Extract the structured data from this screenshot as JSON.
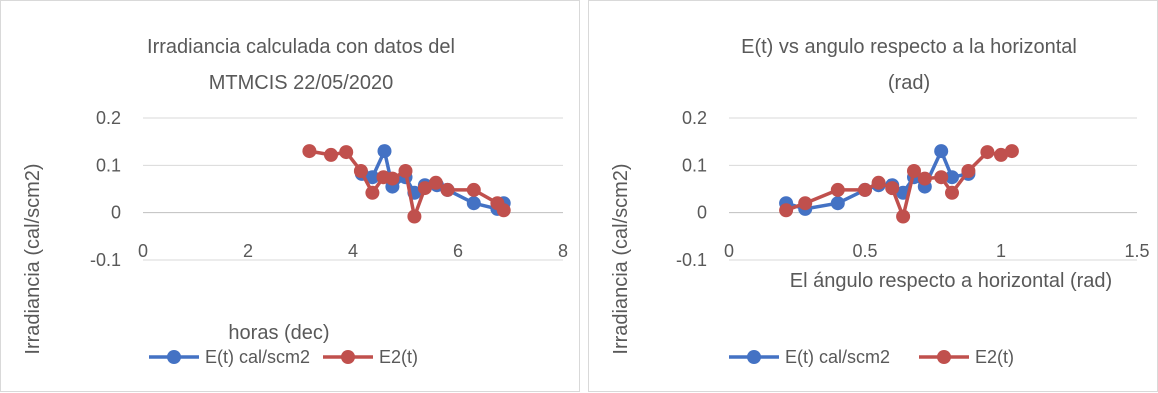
{
  "chart_data": [
    {
      "type": "scatter",
      "title": [
        "Irradiancia calculada con datos del",
        "MTMCIS 22/05/2020"
      ],
      "xlabel": "horas (dec)",
      "ylabel": "Irradiancia (cal/scm2)",
      "xlim": [
        0,
        8
      ],
      "ylim": [
        -0.1,
        0.2
      ],
      "xticks": [
        "0",
        "2",
        "4",
        "6",
        "8"
      ],
      "yticks": [
        "0.2",
        "0.1",
        "0",
        "-0.1"
      ],
      "grid": "horizontal",
      "legend": "bottom",
      "series": [
        {
          "name": "E(t) cal/scm2",
          "color": "#4472c4",
          "points": [
            [
              4.17,
              0.082
            ],
            [
              4.37,
              0.075
            ],
            [
              4.6,
              0.13
            ],
            [
              4.75,
              0.055
            ],
            [
              5.0,
              0.075
            ],
            [
              5.17,
              0.042
            ],
            [
              5.37,
              0.058
            ],
            [
              5.6,
              0.058
            ],
            [
              5.8,
              0.048
            ],
            [
              6.3,
              0.02
            ],
            [
              6.75,
              0.008
            ],
            [
              6.87,
              0.02
            ]
          ]
        },
        {
          "name": "E2(t)",
          "color": "#c0504d",
          "points": [
            [
              3.17,
              0.13
            ],
            [
              3.58,
              0.122
            ],
            [
              3.87,
              0.128
            ],
            [
              4.15,
              0.088
            ],
            [
              4.37,
              0.042
            ],
            [
              4.58,
              0.075
            ],
            [
              4.75,
              0.072
            ],
            [
              5.0,
              0.088
            ],
            [
              5.17,
              -0.008
            ],
            [
              5.37,
              0.052
            ],
            [
              5.58,
              0.063
            ],
            [
              5.8,
              0.048
            ],
            [
              6.3,
              0.048
            ],
            [
              6.75,
              0.02
            ],
            [
              6.87,
              0.005
            ]
          ]
        }
      ]
    },
    {
      "type": "scatter",
      "title": [
        "E(t) vs angulo respecto a la horizontal",
        "(rad)"
      ],
      "xlabel": "El ángulo respecto a horizontal (rad)",
      "ylabel": "Irradiancia (cal/scm2)",
      "xlim": [
        0,
        1.5
      ],
      "ylim": [
        -0.1,
        0.2
      ],
      "xticks": [
        "0",
        "0.5",
        "1",
        "1.5"
      ],
      "yticks": [
        "0.2",
        "0.1",
        "0",
        "-0.1"
      ],
      "grid": "horizontal",
      "legend": "bottom",
      "series": [
        {
          "name": "E(t) cal/scm2",
          "color": "#4472c4",
          "points": [
            [
              0.21,
              0.02
            ],
            [
              0.28,
              0.008
            ],
            [
              0.4,
              0.02
            ],
            [
              0.5,
              0.048
            ],
            [
              0.55,
              0.058
            ],
            [
              0.6,
              0.058
            ],
            [
              0.64,
              0.042
            ],
            [
              0.68,
              0.075
            ],
            [
              0.72,
              0.055
            ],
            [
              0.78,
              0.13
            ],
            [
              0.82,
              0.075
            ],
            [
              0.88,
              0.082
            ]
          ]
        },
        {
          "name": "E2(t)",
          "color": "#c0504d",
          "points": [
            [
              0.21,
              0.005
            ],
            [
              0.28,
              0.02
            ],
            [
              0.4,
              0.048
            ],
            [
              0.5,
              0.048
            ],
            [
              0.55,
              0.063
            ],
            [
              0.6,
              0.052
            ],
            [
              0.64,
              -0.008
            ],
            [
              0.68,
              0.088
            ],
            [
              0.72,
              0.072
            ],
            [
              0.78,
              0.075
            ],
            [
              0.82,
              0.042
            ],
            [
              0.88,
              0.088
            ],
            [
              0.95,
              0.128
            ],
            [
              1.0,
              0.122
            ],
            [
              1.04,
              0.13
            ]
          ]
        }
      ]
    }
  ]
}
